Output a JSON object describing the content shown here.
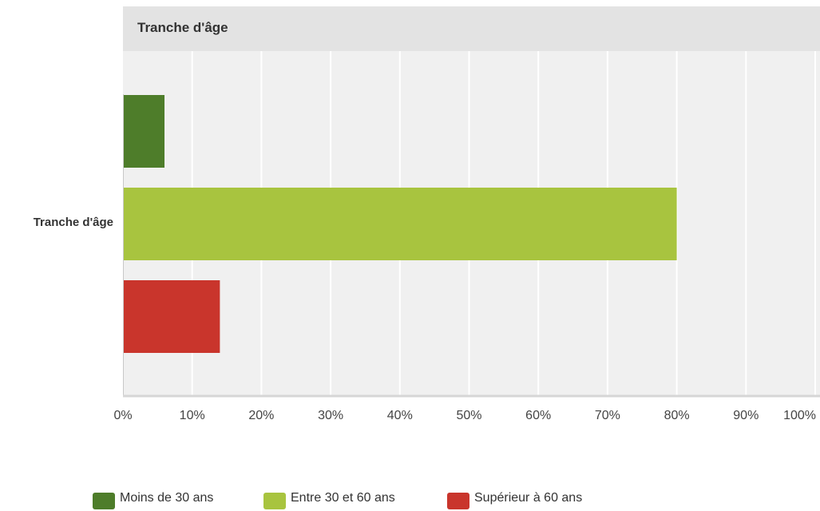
{
  "chart_data": {
    "type": "bar",
    "orientation": "horizontal",
    "title": "Tranche d'âge",
    "categories": [
      "Tranche d'âge"
    ],
    "series": [
      {
        "name": "Moins de 30 ans",
        "values": [
          6
        ],
        "color": "#4e7d2a"
      },
      {
        "name": "Entre 30 et 60 ans",
        "values": [
          80
        ],
        "color": "#a8c43f"
      },
      {
        "name": "Supérieur à 60 ans",
        "values": [
          14
        ],
        "color": "#c9352c"
      }
    ],
    "xlim": [
      0,
      100
    ],
    "x_ticks": [
      "0%",
      "10%",
      "20%",
      "30%",
      "40%",
      "50%",
      "60%",
      "70%",
      "80%",
      "90%",
      "100%"
    ],
    "grid": true,
    "legend_position": "bottom",
    "plot_background": "#f0f0f0",
    "header_background": "#e3e3e3"
  }
}
